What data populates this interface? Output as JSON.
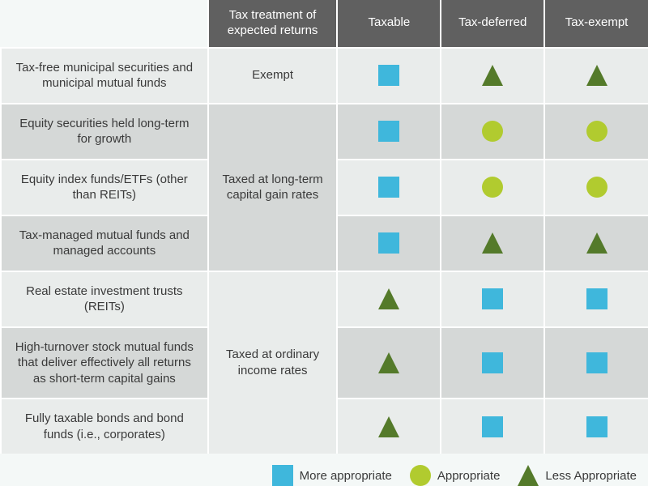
{
  "table": {
    "type": "table",
    "header_bg": "#606060",
    "header_text_color": "#ffffff",
    "row_alt1_bg": "#e9eceb",
    "row_alt2_bg": "#d5d8d7",
    "treatment_alt1_bg": "#e9eceb",
    "treatment_alt2_bg": "#d5d8d7",
    "border_color": "#ffffff",
    "col_widths_pct": [
      32,
      20,
      16,
      16,
      16
    ],
    "columns": [
      "",
      "Tax treatment of expected returns",
      "Taxable",
      "Tax-deferred",
      "Tax-exempt"
    ],
    "groups": [
      {
        "treatment": "Exempt",
        "rows": [
          {
            "label": "Tax-free municipal securities and municipal mutual funds",
            "cells": [
              "more",
              "less",
              "less"
            ]
          }
        ]
      },
      {
        "treatment": "Taxed at long-term capital gain rates",
        "rows": [
          {
            "label": "Equity securities held long-term for growth",
            "cells": [
              "more",
              "appropriate",
              "appropriate"
            ]
          },
          {
            "label": "Equity index funds/ETFs (other than REITs)",
            "cells": [
              "more",
              "appropriate",
              "appropriate"
            ]
          },
          {
            "label": "Tax-managed mutual funds and managed accounts",
            "cells": [
              "more",
              "less",
              "less"
            ]
          }
        ]
      },
      {
        "treatment": "Taxed at ordinary income rates",
        "rows": [
          {
            "label": "Real estate investment trusts (REITs)",
            "cells": [
              "less",
              "more",
              "more"
            ]
          },
          {
            "label": "High-turnover stock mutual funds that deliver effectively all returns as short-term capital gains",
            "cells": [
              "less",
              "more",
              "more"
            ]
          },
          {
            "label": "Fully taxable bonds and bond funds (i.e., corporates)",
            "cells": [
              "less",
              "more",
              "more"
            ]
          }
        ]
      }
    ]
  },
  "icons": {
    "more": {
      "shape": "square",
      "color": "#3fb7dc",
      "size": 26
    },
    "appropriate": {
      "shape": "circle",
      "color": "#b1cb2f",
      "size": 26
    },
    "less": {
      "shape": "triangle",
      "color": "#547a2a",
      "size": 26
    }
  },
  "legend": {
    "bg": "#f4f8f7",
    "items": [
      {
        "icon": "more",
        "label": "More appropriate"
      },
      {
        "icon": "appropriate",
        "label": "Appropriate"
      },
      {
        "icon": "less",
        "label": "Less Appropriate"
      }
    ]
  }
}
